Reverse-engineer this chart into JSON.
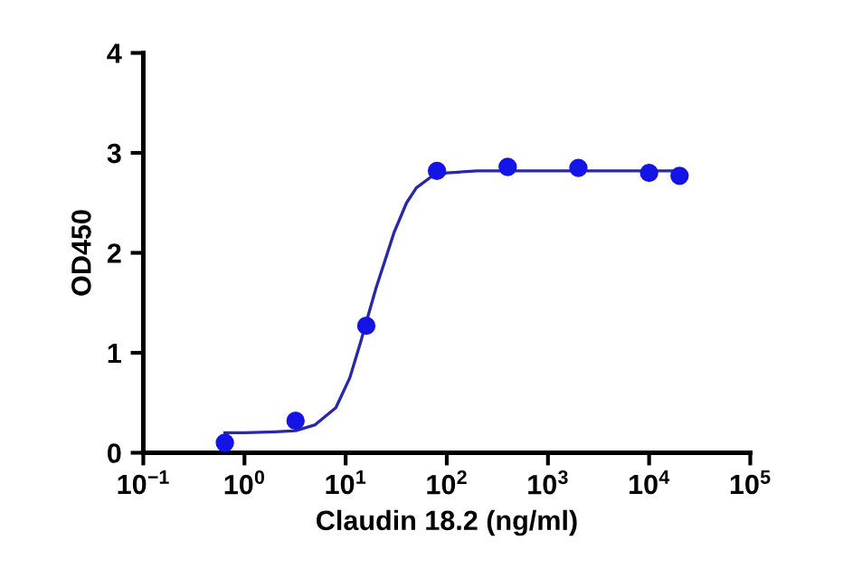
{
  "chart_data": {
    "type": "scatter",
    "xlabel": "Claudin 18.2 (ng/ml)",
    "ylabel": "OD450",
    "log": "x",
    "xlim": [
      0.1,
      100000
    ],
    "ylim": [
      0,
      4
    ],
    "xticks": [
      {
        "value": 0.1,
        "label": "10$^{−1}$"
      },
      {
        "value": 1,
        "label": "10$^{0}$"
      },
      {
        "value": 10,
        "label": "10$^{1}$"
      },
      {
        "value": 100,
        "label": "10$^{2}$"
      },
      {
        "value": 1000,
        "label": "10$^{3}$"
      },
      {
        "value": 10000,
        "label": "10$^{4}$"
      },
      {
        "value": 100000,
        "label": "10$^{5}$"
      }
    ],
    "yticks": [
      0,
      1,
      2,
      3,
      4
    ],
    "grid": false,
    "series": [
      {
        "color": "#1414e6",
        "marker": "circle",
        "x": [
          0.64,
          3.2,
          16,
          80,
          400,
          2000,
          10000,
          20000
        ],
        "values": [
          0.1,
          0.32,
          1.27,
          2.82,
          2.86,
          2.85,
          2.8,
          2.77
        ]
      },
      {
        "type": "line",
        "color": "#2828a8",
        "marker": "none",
        "line_style": "solid",
        "x": [
          0.64,
          1,
          2,
          3.2,
          5,
          8,
          11,
          14,
          17,
          20,
          25,
          30,
          40,
          50,
          70,
          100,
          200,
          1000,
          20000
        ],
        "values": [
          0.2,
          0.2,
          0.21,
          0.22,
          0.28,
          0.45,
          0.75,
          1.1,
          1.4,
          1.65,
          1.95,
          2.2,
          2.5,
          2.65,
          2.76,
          2.8,
          2.82,
          2.82,
          2.82
        ]
      }
    ]
  }
}
